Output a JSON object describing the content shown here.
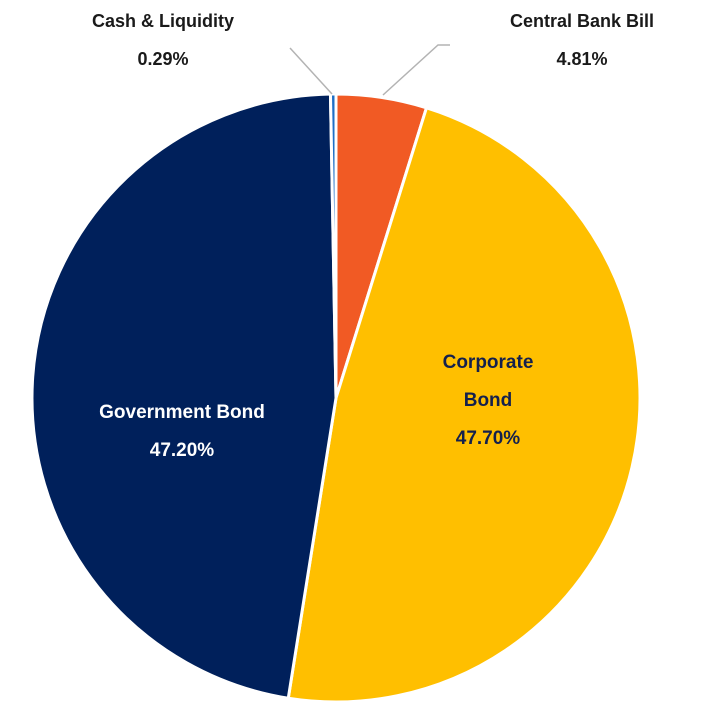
{
  "chart_data": {
    "type": "pie",
    "title": "",
    "start": "12 o'clock",
    "direction": "clockwise",
    "slices": [
      {
        "label": "Central Bank Bill",
        "label_lines": [
          "Central Bank Bill"
        ],
        "percent_text": "4.81%",
        "value": 4.81,
        "color": "#f15a24",
        "label_color": "#1a1a1a",
        "label_style": "callout"
      },
      {
        "label": "Corporate Bond",
        "label_lines": [
          "Corporate",
          "Bond"
        ],
        "percent_text": "47.70%",
        "value": 47.7,
        "color": "#ffbf00",
        "label_color": "#14204d",
        "label_style": "inside"
      },
      {
        "label": "Government Bond",
        "label_lines": [
          "Government Bond"
        ],
        "percent_text": "47.20%",
        "value": 47.2,
        "color": "#00205b",
        "label_color": "#ffffff",
        "label_style": "inside"
      },
      {
        "label": "Cash & Liquidity",
        "label_lines": [
          "Cash & Liquidity"
        ],
        "percent_text": "0.29%",
        "value": 0.29,
        "color": "#1f6fc5",
        "label_color": "#1a1a1a",
        "label_style": "callout"
      }
    ],
    "legend": "none",
    "slice_border_color": "#ffffff",
    "leader_line_color": "#b3b3b3"
  }
}
